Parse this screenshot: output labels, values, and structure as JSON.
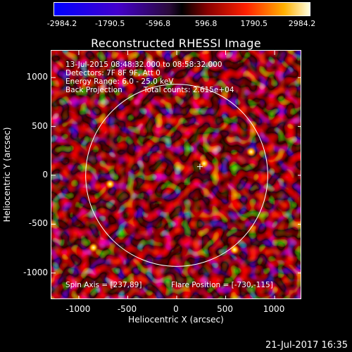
{
  "colorbar": {
    "labels": [
      "-2984.2",
      "-1790.5",
      "-596.8",
      "596.8",
      "1790.5",
      "2984.2"
    ],
    "range": [
      -2984.2,
      2984.2
    ]
  },
  "info": {
    "time": "13-Jul-2015 08:48:32.000 to 08:58:32.000",
    "detectors": "Detectors: 7F 8F 9F, Att 0",
    "energy": "Energy Range: 6.0 - 25.0 keV",
    "method": "Back Projection",
    "counts": "Total counts: 2.615e+04",
    "spin_axis": "Spin Axis = [237,89]",
    "flare_position": "Flare Position = [-730,-115]"
  },
  "footer": {
    "date": "21-Jul-2017 16:35"
  },
  "chart_data": {
    "type": "heatmap",
    "title": "Reconstructed RHESSI Image",
    "xlabel": "Heliocentric X (arcsec)",
    "ylabel": "Heliocentric Y (arcsec)",
    "xlim": [
      -1280,
      1280
    ],
    "ylim": [
      -1275,
      1275
    ],
    "xticks": [
      -1000,
      -500,
      0,
      500,
      1000
    ],
    "xtick_labels": [
      "-1000",
      "-500",
      "0",
      "500",
      "1000"
    ],
    "yticks": [
      1000,
      500,
      0,
      -500,
      -1000
    ],
    "ytick_labels": [
      "1000",
      "500",
      "0",
      "-500",
      "-1000"
    ],
    "solar_limb": {
      "center": [
        0,
        0
      ],
      "radius_arcsec": 930
    },
    "marker": {
      "x": 237,
      "y": 89
    },
    "bright_sources": [
      {
        "x": 280,
        "y": 120
      },
      {
        "x": -680,
        "y": -90
      },
      {
        "x": 760,
        "y": 240
      },
      {
        "x": 590,
        "y": -760
      },
      {
        "x": -850,
        "y": -740
      }
    ],
    "color_range": [
      -2984.2,
      2984.2
    ]
  }
}
